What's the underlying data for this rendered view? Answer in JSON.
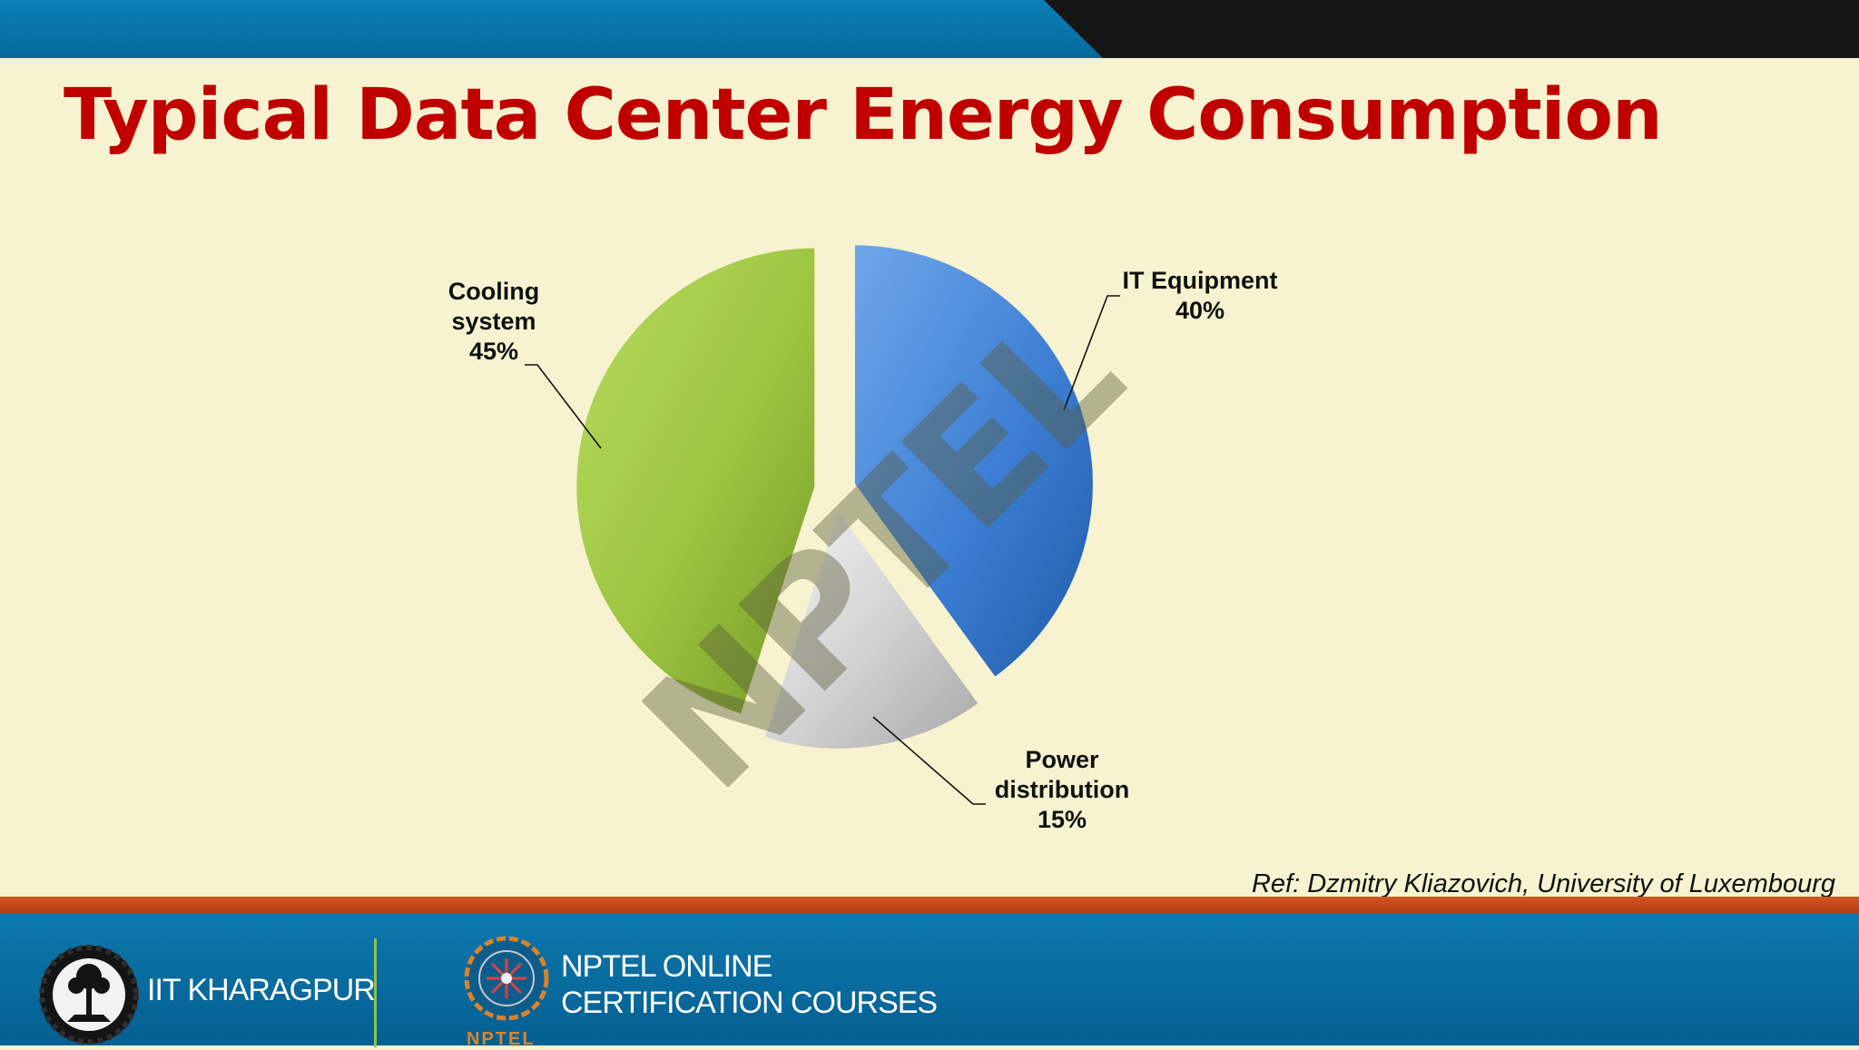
{
  "slide": {
    "title": "Typical Data Center Energy Consumption",
    "reference": "Ref: Dzmitry Kliazovich, University of Luxembourg",
    "watermark": "NPTEL"
  },
  "chart_data": {
    "type": "pie",
    "title": "",
    "slices": [
      {
        "label_lines": [
          "IT Equipment",
          "40%"
        ],
        "name": "IT Equipment",
        "value": 40,
        "color": "#3d7fd4"
      },
      {
        "label_lines": [
          "Power",
          "distribution",
          "15%"
        ],
        "name": "Power distribution",
        "value": 15,
        "color": "#cfcfcf"
      },
      {
        "label_lines": [
          "Cooling",
          "system",
          "45%"
        ],
        "name": "Cooling system",
        "value": 45,
        "color": "#9cc43e"
      }
    ],
    "legend": "none"
  },
  "footer": {
    "institute": "IIT KHARAGPUR",
    "program_line1": "NPTEL ONLINE",
    "program_line2": "CERTIFICATION COURSES",
    "program_logo_text": "NPTEL"
  },
  "colors": {
    "title": "#c00000",
    "top_band_blue": "#0a79ad",
    "top_band_dark": "#161616",
    "footer_orange": "#c9491a",
    "footer_blue": "#0a6fa3",
    "background": "#f7f2cf"
  }
}
